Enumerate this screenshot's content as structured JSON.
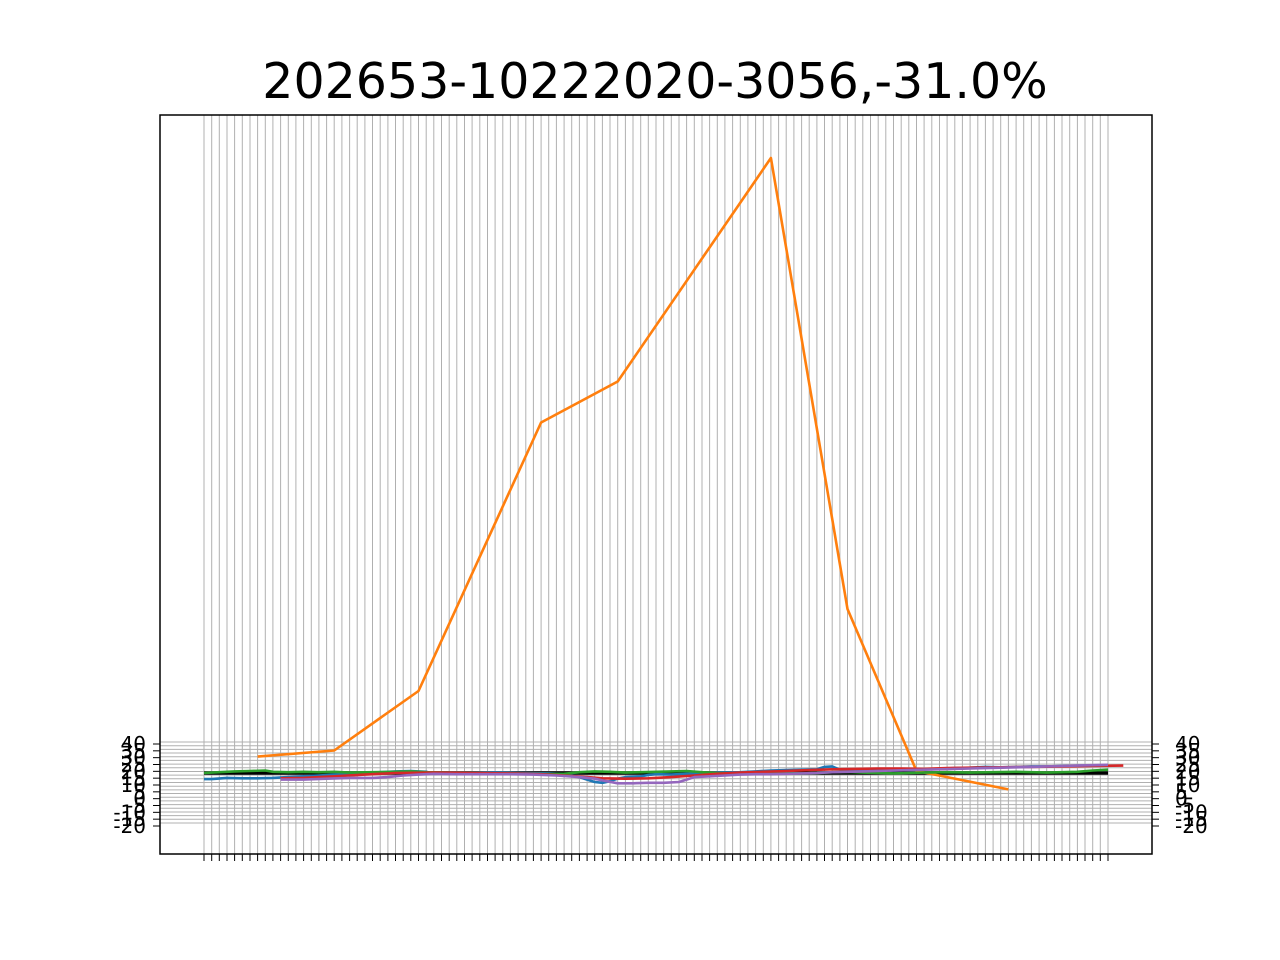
{
  "chart_data": {
    "type": "line",
    "title": "202653-10222020-3056,-31.0%",
    "xlabel": "",
    "ylabel": "",
    "grid": true,
    "left_ytick_labels": [
      "40",
      "35",
      "30",
      "25",
      "20",
      "15",
      "10",
      "5",
      "0",
      "-5",
      "-10",
      "-15",
      "-20"
    ],
    "right_ytick_labels": [
      "40",
      "35",
      "30",
      "25",
      "20",
      "15",
      "10",
      "5",
      "0",
      "-5",
      "-10",
      "-15",
      "-20"
    ],
    "colors": {
      "orange": "#ff7f0e",
      "blue": "#1f77b4",
      "green": "#2ca02c",
      "red": "#d62728",
      "purple": "#9467bd",
      "zero_line": "#000000",
      "grid": "#b0b0b0"
    },
    "x_count": 118,
    "series": [
      {
        "color": "#ff7f0e",
        "points": [
          [
            7,
            40
          ],
          [
            17,
            55
          ],
          [
            28,
            200
          ],
          [
            44,
            855
          ],
          [
            54,
            955
          ],
          [
            74,
            1500
          ],
          [
            84,
            400
          ],
          [
            93,
            5
          ],
          [
            105,
            -40
          ]
        ]
      },
      {
        "color": "#1f77b4",
        "points": [
          [
            0,
            -15
          ],
          [
            1,
            -15
          ],
          [
            3,
            -12
          ],
          [
            5,
            -13
          ],
          [
            7,
            -13
          ],
          [
            9,
            -12
          ],
          [
            11,
            -10
          ],
          [
            13,
            -8
          ],
          [
            15,
            -6
          ],
          [
            17,
            -4
          ],
          [
            19,
            -2
          ],
          [
            21,
            0
          ],
          [
            23,
            2
          ],
          [
            25,
            4
          ],
          [
            27,
            5
          ],
          [
            29,
            3
          ],
          [
            30,
            -2
          ],
          [
            32,
            -1
          ],
          [
            35,
            0
          ],
          [
            38,
            1
          ],
          [
            41,
            0
          ],
          [
            45,
            -1
          ],
          [
            47,
            -3
          ],
          [
            48,
            -6
          ],
          [
            49,
            -10
          ],
          [
            50,
            -16
          ],
          [
            51,
            -22
          ],
          [
            52,
            -24
          ],
          [
            53,
            -20
          ],
          [
            54,
            -14
          ],
          [
            55,
            -10
          ],
          [
            56,
            -9
          ],
          [
            57,
            -8
          ],
          [
            58,
            -5
          ],
          [
            59,
            -3
          ],
          [
            61,
            -4
          ],
          [
            63,
            -2
          ],
          [
            65,
            0
          ],
          [
            67,
            1
          ],
          [
            70,
            2
          ],
          [
            72,
            4
          ],
          [
            74,
            6
          ],
          [
            76,
            7
          ],
          [
            78,
            8
          ],
          [
            80,
            9
          ],
          [
            81,
            15
          ],
          [
            82,
            16
          ],
          [
            83,
            8
          ],
          [
            84,
            6
          ],
          [
            85,
            5
          ],
          [
            86,
            7
          ],
          [
            88,
            8
          ],
          [
            90,
            6
          ],
          [
            92,
            7
          ],
          [
            94,
            9
          ],
          [
            96,
            10
          ],
          [
            98,
            12
          ],
          [
            100,
            13
          ],
          [
            102,
            15
          ],
          [
            104,
            14
          ],
          [
            106,
            15
          ],
          [
            108,
            16
          ],
          [
            110,
            16
          ],
          [
            112,
            17
          ],
          [
            115,
            18
          ],
          [
            118,
            18
          ]
        ]
      },
      {
        "color": "#2ca02c",
        "points": [
          [
            0,
            0
          ],
          [
            2,
            2
          ],
          [
            4,
            4
          ],
          [
            6,
            5
          ],
          [
            8,
            6
          ],
          [
            9,
            3
          ],
          [
            11,
            2
          ],
          [
            13,
            3
          ],
          [
            15,
            2
          ],
          [
            17,
            3
          ],
          [
            19,
            1
          ],
          [
            22,
            2
          ],
          [
            25,
            3
          ],
          [
            27,
            4
          ],
          [
            29,
            2
          ],
          [
            31,
            1
          ],
          [
            34,
            0
          ],
          [
            38,
            -1
          ],
          [
            42,
            -2
          ],
          [
            45,
            -3
          ],
          [
            47,
            -2
          ],
          [
            49,
            2
          ],
          [
            51,
            4
          ],
          [
            53,
            3
          ],
          [
            55,
            1
          ],
          [
            57,
            2
          ],
          [
            59,
            3
          ],
          [
            61,
            4
          ],
          [
            63,
            5
          ],
          [
            65,
            2
          ],
          [
            67,
            0
          ],
          [
            70,
            -1
          ],
          [
            72,
            0
          ],
          [
            74,
            1
          ],
          [
            76,
            0
          ],
          [
            78,
            -1
          ],
          [
            80,
            0
          ],
          [
            82,
            2
          ],
          [
            84,
            3
          ],
          [
            86,
            1
          ],
          [
            88,
            0
          ],
          [
            90,
            -1
          ],
          [
            92,
            0
          ],
          [
            94,
            1
          ],
          [
            97,
            2
          ],
          [
            100,
            1
          ],
          [
            103,
            2
          ],
          [
            106,
            3
          ],
          [
            108,
            2
          ],
          [
            110,
            1
          ],
          [
            112,
            2
          ],
          [
            114,
            3
          ],
          [
            116,
            6
          ],
          [
            118,
            8
          ]
        ]
      },
      {
        "color": "#d62728",
        "points": [
          [
            10,
            -13
          ],
          [
            13,
            -12
          ],
          [
            17,
            -8
          ],
          [
            21,
            -4
          ],
          [
            25,
            0
          ],
          [
            30,
            1
          ],
          [
            35,
            0
          ],
          [
            40,
            -1
          ],
          [
            44,
            -3
          ],
          [
            47,
            -6
          ],
          [
            50,
            -10
          ],
          [
            52,
            -13
          ],
          [
            55,
            -14
          ],
          [
            58,
            -13
          ],
          [
            61,
            -10
          ],
          [
            64,
            -6
          ],
          [
            67,
            -2
          ],
          [
            70,
            1
          ],
          [
            73,
            3
          ],
          [
            76,
            5
          ],
          [
            79,
            7
          ],
          [
            82,
            9
          ],
          [
            85,
            10
          ],
          [
            88,
            11
          ],
          [
            91,
            11
          ],
          [
            94,
            10
          ],
          [
            97,
            12
          ],
          [
            100,
            13
          ],
          [
            104,
            14
          ],
          [
            108,
            15
          ],
          [
            112,
            16
          ],
          [
            116,
            17
          ],
          [
            120,
            18
          ]
        ]
      },
      {
        "color": "#9467bd",
        "points": [
          [
            10,
            -16
          ],
          [
            13,
            -16
          ],
          [
            16,
            -14
          ],
          [
            19,
            -12
          ],
          [
            22,
            -12
          ],
          [
            24,
            -10
          ],
          [
            26,
            -6
          ],
          [
            28,
            -4
          ],
          [
            30,
            -2
          ],
          [
            33,
            -3
          ],
          [
            36,
            -3
          ],
          [
            40,
            -3
          ],
          [
            43,
            -4
          ],
          [
            46,
            -6
          ],
          [
            49,
            -10
          ],
          [
            51,
            -14
          ],
          [
            52,
            -18
          ],
          [
            54,
            -25
          ],
          [
            56,
            -25
          ],
          [
            58,
            -24
          ],
          [
            60,
            -24
          ],
          [
            62,
            -22
          ],
          [
            63,
            -16
          ],
          [
            64,
            -10
          ],
          [
            66,
            -8
          ],
          [
            68,
            -6
          ],
          [
            70,
            -4
          ],
          [
            72,
            -3
          ],
          [
            74,
            -3
          ],
          [
            76,
            -2
          ],
          [
            78,
            -1
          ],
          [
            80,
            0
          ],
          [
            82,
            2
          ],
          [
            84,
            3
          ],
          [
            86,
            4
          ],
          [
            88,
            5
          ],
          [
            90,
            6
          ],
          [
            92,
            7
          ],
          [
            94,
            8
          ],
          [
            96,
            9
          ],
          [
            98,
            10
          ],
          [
            100,
            11
          ],
          [
            102,
            12
          ],
          [
            104,
            13
          ],
          [
            106,
            14
          ],
          [
            108,
            15
          ],
          [
            110,
            16
          ],
          [
            112,
            17
          ],
          [
            114,
            18
          ],
          [
            116,
            19
          ],
          [
            118,
            20
          ]
        ]
      }
    ]
  }
}
